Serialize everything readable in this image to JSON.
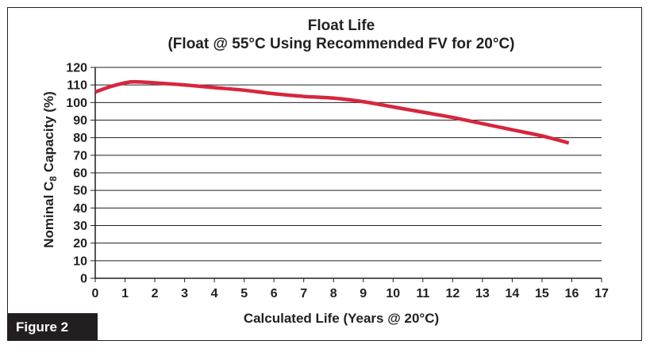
{
  "figure_label": "Figure 2",
  "chart_data": {
    "type": "line",
    "title": "Float Life",
    "subtitle": "(Float @ 55°C Using Recommended FV for 20°C)",
    "xlabel": "Calculated Life (Years @ 20°C)",
    "ylabel_prefix": "Nominal C",
    "ylabel_subscript": "8",
    "ylabel_suffix": " Capacity (%)",
    "xlim": [
      0,
      17
    ],
    "ylim": [
      0,
      120
    ],
    "x_ticks": [
      0,
      1,
      2,
      3,
      4,
      5,
      6,
      7,
      8,
      9,
      10,
      11,
      12,
      13,
      14,
      15,
      16,
      17
    ],
    "y_ticks": [
      0,
      10,
      20,
      30,
      40,
      50,
      60,
      70,
      80,
      90,
      100,
      110,
      120
    ],
    "grid": "horizontal",
    "line_color": "#d7263d",
    "series": [
      {
        "name": "Float Life",
        "x": [
          0,
          0.5,
          1,
          1.3,
          2,
          3,
          4,
          5,
          6,
          7,
          8,
          9,
          10,
          11,
          12,
          13,
          14,
          15,
          15.9
        ],
        "y": [
          106,
          109,
          111.2,
          111.8,
          111.2,
          110,
          108.5,
          107,
          105,
          103.5,
          102.5,
          100.5,
          97.5,
          94.5,
          91.5,
          88,
          84.5,
          81,
          77
        ]
      }
    ]
  }
}
